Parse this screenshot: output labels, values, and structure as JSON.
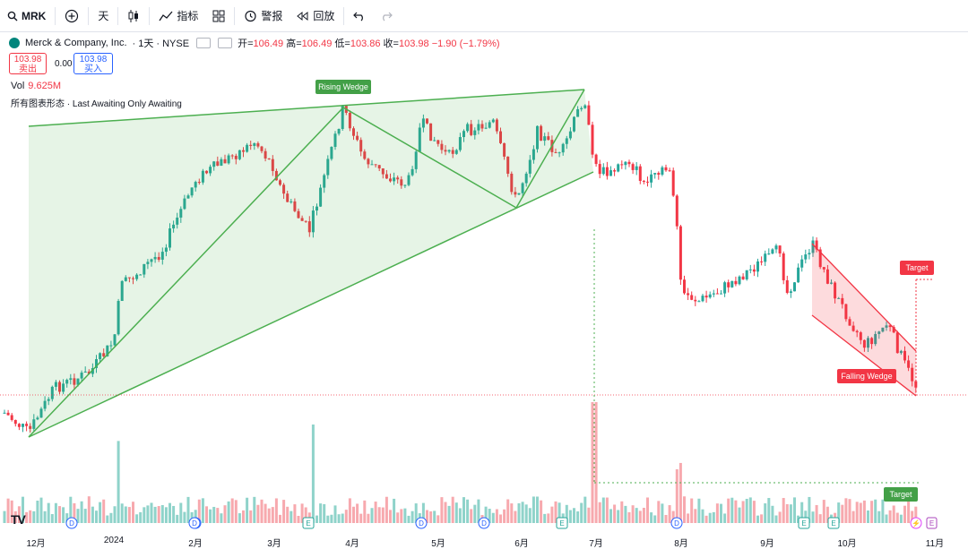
{
  "toolbar": {
    "symbol": "MRK",
    "interval": "天",
    "indicators": "指标",
    "alert": "警报",
    "replay": "回放"
  },
  "legend": {
    "company": "Merck & Company, Inc.",
    "interval_exchange": "· 1天 · NYSE",
    "open_label": "开=",
    "open": "106.49",
    "high_label": "高=",
    "high": "106.49",
    "low_label": "低=",
    "low": "103.86",
    "close_label": "收=",
    "close": "103.98",
    "change": "−1.90 (−1.79%)"
  },
  "trade": {
    "sell_price": "103.98",
    "sell_label": "卖出",
    "spread": "0.00",
    "buy_price": "103.98",
    "buy_label": "买入"
  },
  "volume": {
    "label": "Vol",
    "value": "9.625M"
  },
  "patterns_label": "所有图表形态 · Last Awaiting Only Awaiting",
  "annotations": {
    "rising_wedge": "Rising Wedge",
    "falling_wedge": "Falling Wedge",
    "target_price": "Target",
    "target_volume": "Target"
  },
  "time_axis": [
    "12月",
    "2024",
    "2月",
    "3月",
    "4月",
    "5月",
    "6月",
    "7月",
    "8月",
    "9月",
    "10月",
    "11月"
  ],
  "events": [
    "D",
    "D",
    "E",
    "D",
    "D",
    "E",
    "D",
    "E",
    "D",
    "E"
  ],
  "tv_logo": "TV",
  "colors": {
    "up": "#26a69a",
    "down": "#f23645",
    "wedge_up": "#4caf50",
    "wedge_down": "#f23645"
  }
}
